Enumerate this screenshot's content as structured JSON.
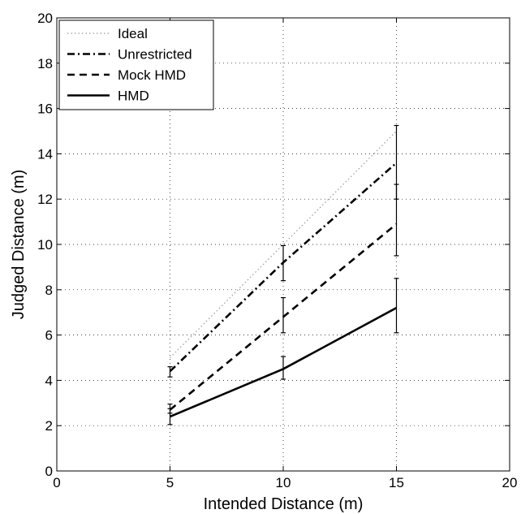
{
  "chart_data": {
    "type": "line",
    "xlabel": "Intended Distance (m)",
    "ylabel": "Judged Distance (m)",
    "xlim": [
      0,
      20
    ],
    "ylim": [
      0,
      20
    ],
    "xticks": [
      0,
      5,
      10,
      15,
      20
    ],
    "yticks": [
      0,
      2,
      4,
      6,
      8,
      10,
      12,
      14,
      16,
      18,
      20
    ],
    "grid": true,
    "legend_position": "top-left",
    "series": [
      {
        "name": "Ideal",
        "style": "dotted",
        "color": "#9a9a9a",
        "x": [
          5,
          10,
          15
        ],
        "y": [
          5,
          10,
          15
        ]
      },
      {
        "name": "Unrestricted",
        "style": "dash-dot",
        "color": "#000000",
        "x": [
          5,
          10,
          15
        ],
        "y": [
          4.4,
          9.2,
          13.6
        ],
        "err_low": [
          4.15,
          8.4,
          12.0
        ],
        "err_high": [
          4.6,
          9.95,
          15.25
        ]
      },
      {
        "name": "Mock HMD",
        "style": "dashed",
        "color": "#000000",
        "x": [
          5,
          10,
          15
        ],
        "y": [
          2.7,
          6.8,
          10.9
        ],
        "err_low": [
          2.55,
          6.1,
          9.5
        ],
        "err_high": [
          2.95,
          7.65,
          12.65
        ]
      },
      {
        "name": "HMD",
        "style": "solid",
        "color": "#000000",
        "x": [
          5,
          10,
          15
        ],
        "y": [
          2.4,
          4.5,
          7.2
        ],
        "err_low": [
          2.05,
          4.05,
          6.1
        ],
        "err_high": [
          2.75,
          5.05,
          8.5
        ]
      }
    ]
  }
}
